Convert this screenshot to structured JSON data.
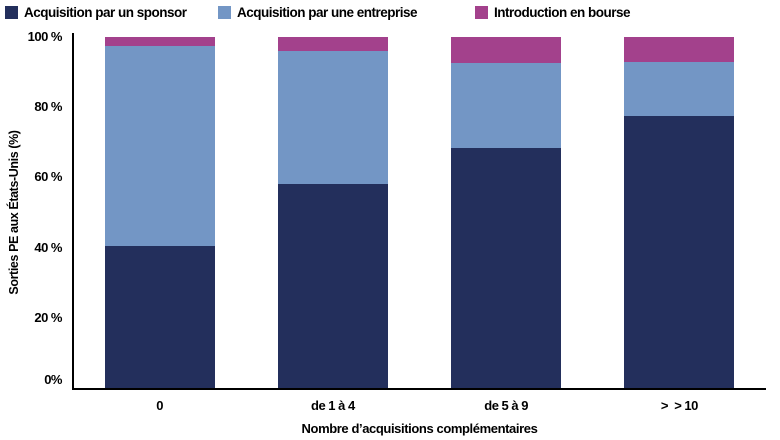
{
  "chart_data": {
    "type": "bar",
    "stacked": true,
    "orientation": "vertical",
    "categories": [
      "0",
      "de 1 à 4",
      "de 5 à 9",
      ">  > 10"
    ],
    "series": [
      {
        "name": "Acquisition par un sponsor",
        "color": "#232f5c",
        "values": [
          40.5,
          58,
          68.5,
          77.5
        ]
      },
      {
        "name": "Acquisition par une entreprise",
        "color": "#7396c5",
        "values": [
          57,
          38,
          24,
          15.5
        ]
      },
      {
        "name": "Introduction en bourse",
        "color": "#a3418c",
        "values": [
          2.5,
          4,
          7.5,
          7
        ]
      }
    ],
    "xlabel": "Nombre d’acquisitions complémentaires",
    "ylabel": "Sorties PE aux États-Unis (%)",
    "ylim": [
      0,
      100
    ],
    "yticks": [
      0,
      20,
      40,
      60,
      80,
      100
    ],
    "ytick_labels": [
      "0%",
      "20 %",
      "40 %",
      "60 %",
      "80 %",
      "100 %"
    ],
    "legend_position": "top",
    "grid": false,
    "axis_color": "#000000",
    "text_color": "#000000",
    "background_color": "#ffffff"
  }
}
